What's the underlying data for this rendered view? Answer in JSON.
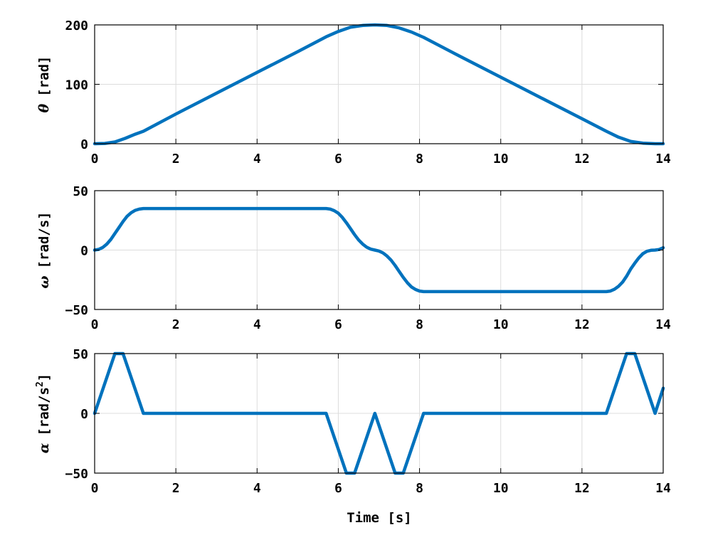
{
  "colors": {
    "series": "#0072bd",
    "grid": "#dcdcdc",
    "axes": "#000000"
  },
  "chart_data": [
    {
      "type": "line",
      "symbol": "θ",
      "ylabel_unit": "[rad]",
      "xlabel": "",
      "xlim": [
        0,
        14
      ],
      "ylim": [
        0,
        200
      ],
      "xticks": [
        0,
        2,
        4,
        6,
        8,
        10,
        12,
        14
      ],
      "yticks": [
        0,
        100,
        200
      ],
      "grid": true,
      "series": [
        {
          "x": [
            0,
            0.25,
            0.5,
            0.75,
            1.0,
            1.2,
            2,
            3,
            4,
            5,
            5.7,
            6.0,
            6.3,
            6.6,
            6.9,
            7.2,
            7.5,
            7.8,
            8.1,
            9,
            10,
            11,
            12,
            12.6,
            12.9,
            13.2,
            13.5,
            13.8,
            14
          ],
          "y": [
            0,
            0.5,
            3,
            9,
            16,
            21,
            50,
            85,
            120,
            155,
            180,
            189,
            196,
            199,
            200,
            199,
            195,
            188,
            179,
            147,
            112,
            77,
            42,
            21,
            11,
            4,
            1,
            0,
            0
          ]
        }
      ]
    },
    {
      "type": "line",
      "symbol": "ω",
      "ylabel_unit": "[rad/s]",
      "xlabel": "",
      "xlim": [
        0,
        14
      ],
      "ylim": [
        -50,
        50
      ],
      "xticks": [
        0,
        2,
        4,
        6,
        8,
        10,
        12,
        14
      ],
      "yticks": [
        -50,
        0,
        50
      ],
      "grid": true,
      "series": [
        {
          "x": [
            0,
            0.1,
            0.2,
            0.3,
            0.4,
            0.5,
            0.6,
            0.7,
            0.8,
            0.9,
            1.0,
            1.1,
            1.2,
            5.7,
            5.8,
            5.9,
            6.0,
            6.1,
            6.2,
            6.3,
            6.4,
            6.5,
            6.6,
            6.7,
            6.8,
            6.9,
            7.0,
            7.1,
            7.2,
            7.3,
            7.4,
            7.5,
            7.6,
            7.7,
            7.8,
            7.9,
            8.0,
            8.1,
            12.6,
            12.7,
            12.8,
            12.9,
            13.0,
            13.1,
            13.2,
            13.3,
            13.4,
            13.5,
            13.6,
            13.7,
            13.8,
            13.9,
            14.0
          ],
          "y": [
            0,
            0.6,
            2.2,
            5,
            9,
            14,
            19,
            24,
            28.5,
            31.5,
            33.5,
            34.5,
            35,
            35,
            34.5,
            33.2,
            31,
            27.5,
            23,
            18,
            13,
            8.5,
            5,
            2.4,
            0.8,
            0,
            -0.8,
            -2.4,
            -5,
            -8.5,
            -13,
            -18,
            -23,
            -27.5,
            -31,
            -33.2,
            -34.5,
            -35,
            -35,
            -34.5,
            -33,
            -30.5,
            -27,
            -22,
            -16,
            -11,
            -6.5,
            -3,
            -1,
            -0.2,
            0,
            0.5,
            2
          ]
        }
      ]
    },
    {
      "type": "line",
      "symbol": "α",
      "ylabel_unit": "[rad/s",
      "ylabel_sup": "2",
      "ylabel_close": "]",
      "xlabel": "Time [s]",
      "xlim": [
        0,
        14
      ],
      "ylim": [
        -50,
        50
      ],
      "xticks": [
        0,
        2,
        4,
        6,
        8,
        10,
        12,
        14
      ],
      "yticks": [
        -50,
        0,
        50
      ],
      "grid": true,
      "series": [
        {
          "x": [
            0,
            0.5,
            0.7,
            1.2,
            5.7,
            6.2,
            6.4,
            6.9,
            7.4,
            7.6,
            8.1,
            12.6,
            13.1,
            13.3,
            13.8,
            14
          ],
          "y": [
            0,
            50,
            50,
            0,
            0,
            -50,
            -50,
            0,
            -50,
            -50,
            0,
            0,
            50,
            50,
            0,
            21
          ]
        }
      ]
    }
  ]
}
